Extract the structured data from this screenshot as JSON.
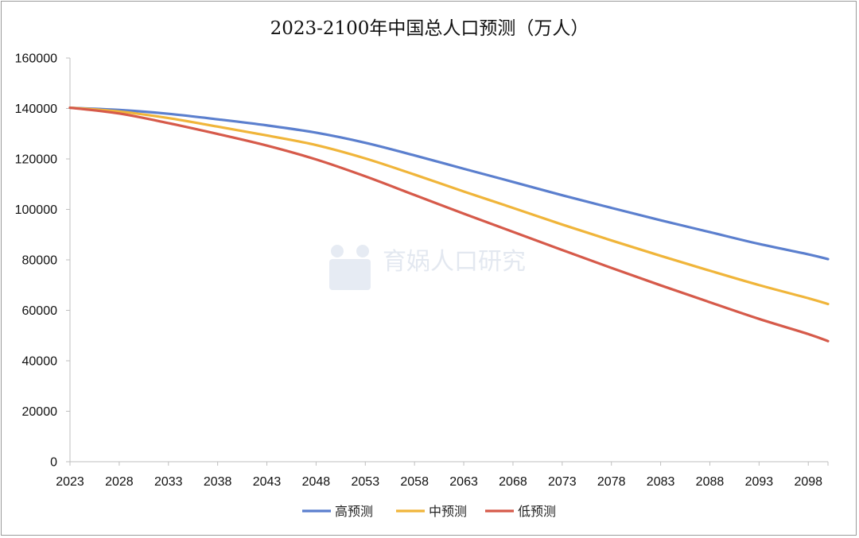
{
  "chart_data": {
    "type": "line",
    "title": "2023-2100年中国总人口预测（万人）",
    "xlabel": "",
    "ylabel": "",
    "x_ticks": [
      2023,
      2028,
      2033,
      2038,
      2043,
      2048,
      2053,
      2058,
      2063,
      2068,
      2073,
      2078,
      2083,
      2088,
      2093,
      2098
    ],
    "x_range": [
      2023,
      2100
    ],
    "ylim": [
      0,
      160000
    ],
    "y_ticks": [
      0,
      20000,
      40000,
      60000,
      80000,
      100000,
      120000,
      140000,
      160000
    ],
    "grid": false,
    "legend_position": "bottom",
    "series": [
      {
        "name": "高预测",
        "color": "#5b7fce",
        "x": [
          2023,
          2028,
          2033,
          2038,
          2043,
          2048,
          2053,
          2058,
          2063,
          2068,
          2073,
          2078,
          2083,
          2088,
          2093,
          2098,
          2100
        ],
        "values": [
          140300,
          139400,
          137900,
          135700,
          133300,
          130400,
          126400,
          121400,
          116100,
          110900,
          105600,
          100600,
          95700,
          91000,
          86300,
          82200,
          80300
        ]
      },
      {
        "name": "中预测",
        "color": "#f0b53a",
        "x": [
          2023,
          2028,
          2033,
          2038,
          2043,
          2048,
          2053,
          2058,
          2063,
          2068,
          2073,
          2078,
          2083,
          2088,
          2093,
          2098,
          2100
        ],
        "values": [
          140300,
          138800,
          136200,
          132800,
          129300,
          125500,
          120200,
          113800,
          107100,
          100600,
          94000,
          87700,
          81600,
          75700,
          70000,
          64800,
          62500
        ]
      },
      {
        "name": "低预测",
        "color": "#d65a4a",
        "x": [
          2023,
          2028,
          2033,
          2038,
          2043,
          2048,
          2053,
          2058,
          2063,
          2068,
          2073,
          2078,
          2083,
          2088,
          2093,
          2098,
          2100
        ],
        "values": [
          140300,
          138000,
          134200,
          129900,
          125300,
          119800,
          113100,
          105700,
          98300,
          91100,
          83900,
          76800,
          69900,
          63200,
          56600,
          50600,
          47800
        ]
      }
    ]
  },
  "watermark": {
    "text": "育娲人口研究"
  }
}
